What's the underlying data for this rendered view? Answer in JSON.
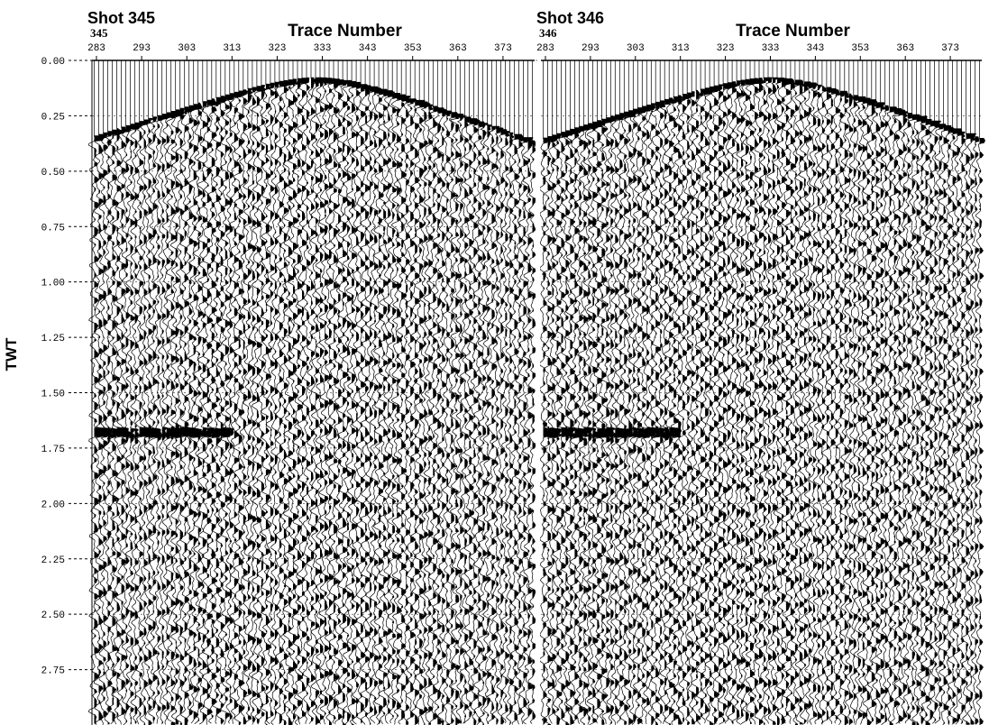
{
  "chart_data": [
    {
      "type": "seismic",
      "title": "Shot 345",
      "shot_label": "345",
      "x_label": "Trace Number",
      "y_label": "TWT",
      "xlim": [
        282,
        380
      ],
      "xticks": [
        283,
        293,
        303,
        313,
        323,
        333,
        343,
        353,
        363,
        373
      ],
      "ylim": [
        0,
        3.0
      ],
      "yticks": [
        {
          "value": 0,
          "label": "0.00"
        },
        {
          "value": 0.25,
          "label": "0.25"
        },
        {
          "value": 0.5,
          "label": "0.50"
        },
        {
          "value": 0.75,
          "label": "0.75"
        },
        {
          "value": 1.0,
          "label": "1.00"
        },
        {
          "value": 1.25,
          "label": "1.25"
        },
        {
          "value": 1.5,
          "label": "1.50"
        },
        {
          "value": 1.75,
          "label": "1.75"
        },
        {
          "value": 2.0,
          "label": "2.00"
        },
        {
          "value": 2.25,
          "label": "2.25"
        },
        {
          "value": 2.5,
          "label": "2.50"
        },
        {
          "value": 2.75,
          "label": "2.75"
        }
      ]
    },
    {
      "type": "seismic",
      "title": "Shot 346",
      "shot_label": "346",
      "x_label": "Trace Number",
      "xlim": [
        282,
        380
      ],
      "xticks": [
        283,
        293,
        303,
        313,
        323,
        333,
        343,
        353,
        363,
        373
      ],
      "ylim": [
        0,
        3.0
      ]
    }
  ]
}
